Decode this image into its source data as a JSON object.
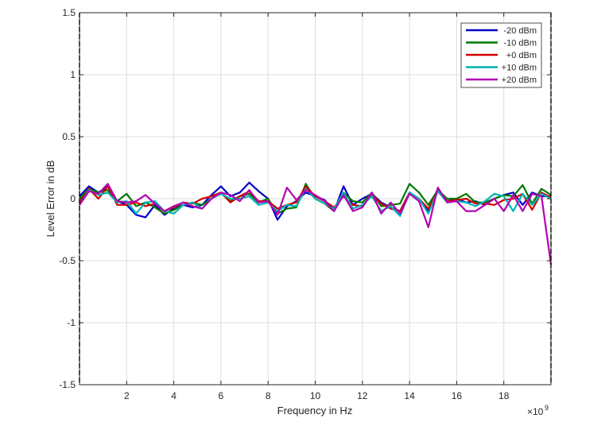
{
  "chart_data": {
    "type": "line",
    "xlabel": "Frequency in Hz",
    "ylabel": "Level Error in dB",
    "x_exponent_label": "×10",
    "x_exponent_power": "9",
    "xlim": [
      0,
      20000000000.0
    ],
    "ylim": [
      -1.5,
      1.5
    ],
    "x_ticks": [
      2000000000.0,
      4000000000.0,
      6000000000.0,
      8000000000.0,
      10000000000.0,
      12000000000.0,
      14000000000.0,
      16000000000.0,
      18000000000.0
    ],
    "x_tick_labels": [
      "2",
      "4",
      "6",
      "8",
      "10",
      "12",
      "14",
      "16",
      "18"
    ],
    "y_ticks": [
      -1.5,
      -1,
      -0.5,
      0,
      0.5,
      1,
      1.5
    ],
    "y_tick_labels": [
      "-1.5",
      "-1",
      "-0.5",
      "0",
      "0.5",
      "1",
      "1.5"
    ],
    "grid": true,
    "legend_position": "top-right",
    "x": [
      0,
      400000000.0,
      800000000.0,
      1200000000.0,
      1600000000.0,
      2000000000.0,
      2400000000.0,
      2800000000.0,
      3200000000.0,
      3600000000.0,
      4000000000.0,
      4400000000.0,
      4800000000.0,
      5200000000.0,
      5600000000.0,
      6000000000.0,
      6400000000.0,
      6800000000.0,
      7200000000.0,
      7600000000.0,
      8000000000.0,
      8400000000.0,
      8800000000.0,
      9200000000.0,
      9600000000.0,
      10000000000.0,
      10400000000.0,
      10800000000.0,
      11200000000.0,
      11600000000.0,
      12000000000.0,
      12400000000.0,
      12800000000.0,
      13200000000.0,
      13600000000.0,
      14000000000.0,
      14400000000.0,
      14800000000.0,
      15200000000.0,
      15600000000.0,
      16000000000.0,
      16400000000.0,
      16800000000.0,
      17200000000.0,
      17600000000.0,
      18000000000.0,
      18400000000.0,
      18800000000.0,
      19200000000.0,
      19600000000.0,
      20000000000.0
    ],
    "series": [
      {
        "name": "-20 dBm",
        "color": "#0000c8",
        "values": [
          0.02,
          0.1,
          0.05,
          0.1,
          -0.02,
          -0.05,
          -0.13,
          -0.15,
          -0.05,
          -0.13,
          -0.08,
          -0.05,
          -0.07,
          -0.05,
          0.03,
          0.1,
          0.02,
          0.05,
          0.13,
          0.06,
          0.0,
          -0.17,
          -0.06,
          -0.02,
          0.05,
          0.02,
          -0.01,
          -0.1,
          0.1,
          -0.05,
          0.0,
          0.04,
          -0.03,
          -0.07,
          -0.1,
          0.05,
          0.0,
          -0.1,
          0.08,
          -0.02,
          0.0,
          -0.03,
          -0.02,
          -0.05,
          0.0,
          0.03,
          0.05,
          -0.05,
          0.05,
          0.02,
          0.02
        ]
      },
      {
        "name": "-10 dBm",
        "color": "#007800",
        "values": [
          0.0,
          0.08,
          0.05,
          0.07,
          -0.02,
          0.04,
          -0.06,
          -0.03,
          -0.07,
          -0.12,
          -0.09,
          -0.05,
          -0.03,
          -0.05,
          0.0,
          0.05,
          -0.02,
          0.02,
          0.04,
          -0.03,
          0.0,
          -0.12,
          -0.08,
          -0.07,
          0.12,
          0.0,
          -0.04,
          -0.1,
          0.05,
          -0.02,
          -0.03,
          0.05,
          -0.06,
          -0.05,
          -0.04,
          0.12,
          0.05,
          -0.05,
          0.07,
          0.0,
          0.0,
          0.04,
          -0.03,
          -0.03,
          0.0,
          0.03,
          0.02,
          0.11,
          -0.04,
          0.08,
          0.03
        ]
      },
      {
        "name": "+0 dBm",
        "color": "#d20000",
        "values": [
          -0.03,
          0.08,
          0.0,
          0.1,
          -0.05,
          -0.05,
          -0.03,
          -0.06,
          -0.04,
          -0.1,
          -0.07,
          -0.03,
          -0.04,
          0.0,
          0.02,
          0.05,
          -0.03,
          0.02,
          0.06,
          -0.02,
          -0.02,
          -0.08,
          -0.05,
          -0.03,
          0.1,
          0.02,
          -0.02,
          -0.07,
          0.02,
          -0.05,
          -0.06,
          0.03,
          -0.04,
          -0.08,
          -0.1,
          0.05,
          0.0,
          -0.08,
          0.06,
          -0.02,
          -0.01,
          0.0,
          -0.04,
          -0.04,
          -0.05,
          -0.01,
          0.0,
          0.04,
          -0.09,
          0.05,
          0.01
        ]
      },
      {
        "name": "+10 dBm",
        "color": "#00b4b4",
        "values": [
          -0.05,
          0.07,
          0.03,
          0.05,
          -0.03,
          -0.02,
          -0.12,
          -0.03,
          -0.02,
          -0.1,
          -0.12,
          -0.05,
          -0.03,
          -0.08,
          0.0,
          0.04,
          0.0,
          0.0,
          0.02,
          -0.05,
          -0.03,
          -0.1,
          -0.05,
          -0.06,
          0.08,
          0.0,
          -0.04,
          -0.08,
          0.05,
          -0.08,
          -0.05,
          0.02,
          -0.1,
          -0.06,
          -0.14,
          0.05,
          0.0,
          -0.12,
          0.06,
          -0.03,
          -0.02,
          -0.03,
          -0.06,
          -0.02,
          0.04,
          0.02,
          -0.1,
          0.04,
          -0.05,
          0.04,
          0.0
        ]
      },
      {
        "name": "+20 dBm",
        "color": "#b400b4",
        "values": [
          -0.05,
          0.06,
          0.04,
          0.12,
          -0.02,
          -0.03,
          -0.02,
          0.03,
          -0.04,
          -0.1,
          -0.06,
          -0.03,
          -0.06,
          -0.08,
          0.0,
          0.05,
          0.03,
          -0.02,
          0.07,
          -0.03,
          -0.02,
          -0.13,
          0.09,
          -0.01,
          0.07,
          0.03,
          -0.02,
          -0.1,
          0.03,
          -0.1,
          -0.07,
          0.05,
          -0.12,
          -0.03,
          -0.12,
          0.04,
          -0.02,
          -0.23,
          0.09,
          -0.03,
          -0.02,
          -0.1,
          -0.1,
          -0.05,
          0.0,
          -0.1,
          0.03,
          -0.1,
          0.04,
          0.02,
          -0.53
        ]
      }
    ]
  }
}
